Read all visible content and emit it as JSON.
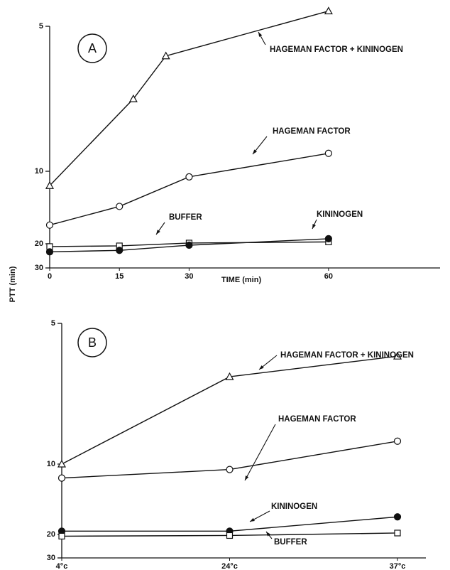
{
  "chart_data": [
    {
      "type": "line",
      "panel_label": "A",
      "xlabel": "TIME (min)",
      "ylabel": "PTT (min)",
      "y_scale": "reciprocal",
      "ylim": [
        30,
        5
      ],
      "yticks": [
        5,
        10,
        20,
        30
      ],
      "xlim": [
        0,
        84
      ],
      "xticks": [
        0,
        15,
        30,
        60
      ],
      "series": [
        {
          "name": "HAGEMAN FACTOR + KININOGEN",
          "color": "#111111",
          "marker": "open-triangle",
          "x": [
            0,
            18,
            25,
            60
          ],
          "values": [
            11.1,
            6.67,
            5.57,
            4.75
          ]
        },
        {
          "name": "HAGEMAN FACTOR",
          "color": "#111111",
          "marker": "open-circle",
          "x": [
            0,
            15,
            30,
            60
          ],
          "values": [
            15.9,
            13.2,
            10.4,
            8.9
          ]
        },
        {
          "name": "BUFFER",
          "color": "#111111",
          "marker": "open-square",
          "x": [
            0,
            15,
            30,
            60
          ],
          "values": [
            20.8,
            20.6,
            19.8,
            19.5
          ]
        },
        {
          "name": "KININOGEN",
          "color": "#111111",
          "marker": "filled-circle",
          "x": [
            0,
            15,
            30,
            60
          ],
          "values": [
            22.5,
            22,
            20.4,
            18.7
          ]
        }
      ]
    },
    {
      "type": "line",
      "panel_label": "B",
      "y_scale": "reciprocal",
      "ylim": [
        30,
        5
      ],
      "yticks": [
        5,
        10,
        20,
        30
      ],
      "categories": [
        "4°c",
        "24°c",
        "37°c"
      ],
      "series": [
        {
          "name": "HAGEMAN FACTOR + KININOGEN",
          "color": "#111111",
          "marker": "open-triangle",
          "values": [
            10,
            6.17,
            5.66
          ]
        },
        {
          "name": "HAGEMAN FACTOR",
          "color": "#111111",
          "marker": "open-circle",
          "values": [
            11.1,
            10.4,
            8.6
          ]
        },
        {
          "name": "KININOGEN",
          "color": "#111111",
          "marker": "filled-circle",
          "values": [
            19.1,
            19.1,
            16
          ]
        },
        {
          "name": "BUFFER",
          "color": "#111111",
          "marker": "open-square",
          "values": [
            20.5,
            20.3,
            19.6
          ]
        }
      ]
    }
  ]
}
